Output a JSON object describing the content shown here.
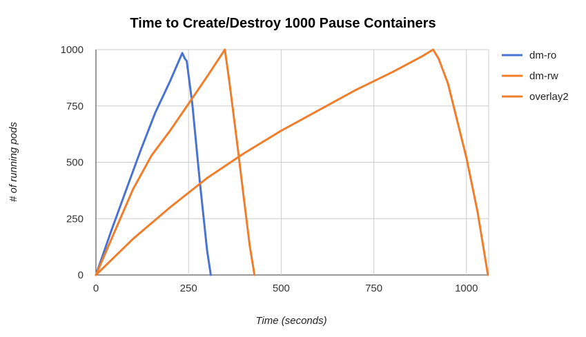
{
  "chart_data": {
    "type": "line",
    "title": "Time to Create/Destroy 1000 Pause Containers",
    "xlabel": "Time (seconds)",
    "ylabel": "# of running pods",
    "xlim": [
      0,
      1060
    ],
    "ylim": [
      0,
      1000
    ],
    "x_ticks": [
      0,
      250,
      500,
      750,
      1000
    ],
    "y_ticks": [
      0,
      250,
      500,
      750,
      1000
    ],
    "grid": true,
    "legend_position": "right",
    "series": [
      {
        "name": "dm-ro",
        "color": "#4a72d2",
        "points": [
          [
            0,
            0
          ],
          [
            40,
            190
          ],
          [
            80,
            370
          ],
          [
            120,
            550
          ],
          [
            160,
            720
          ],
          [
            200,
            860
          ],
          [
            233,
            985
          ],
          [
            240,
            960
          ],
          [
            245,
            950
          ],
          [
            260,
            760
          ],
          [
            280,
            420
          ],
          [
            300,
            110
          ],
          [
            310,
            0
          ]
        ]
      },
      {
        "name": "dm-rw",
        "color": "#f07d2a",
        "points": [
          [
            0,
            0
          ],
          [
            50,
            190
          ],
          [
            100,
            380
          ],
          [
            150,
            530
          ],
          [
            200,
            640
          ],
          [
            250,
            760
          ],
          [
            300,
            880
          ],
          [
            348,
            1000
          ],
          [
            360,
            860
          ],
          [
            380,
            600
          ],
          [
            400,
            330
          ],
          [
            415,
            130
          ],
          [
            428,
            0
          ]
        ]
      },
      {
        "name": "overlay2",
        "color": "#f07d2a",
        "points": [
          [
            0,
            0
          ],
          [
            100,
            160
          ],
          [
            200,
            300
          ],
          [
            300,
            430
          ],
          [
            400,
            540
          ],
          [
            500,
            640
          ],
          [
            600,
            730
          ],
          [
            700,
            820
          ],
          [
            800,
            900
          ],
          [
            880,
            970
          ],
          [
            910,
            1000
          ],
          [
            925,
            960
          ],
          [
            950,
            850
          ],
          [
            1000,
            520
          ],
          [
            1030,
            280
          ],
          [
            1050,
            80
          ],
          [
            1058,
            0
          ]
        ]
      }
    ]
  }
}
